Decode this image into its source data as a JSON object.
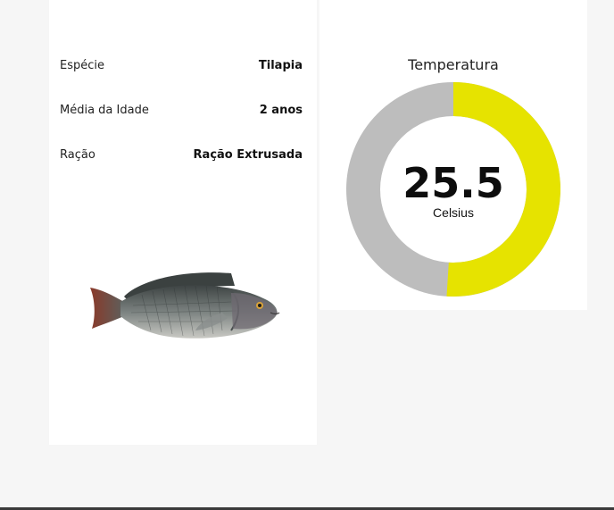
{
  "info": {
    "rows": [
      {
        "label": "Espécie",
        "value": "Tilapia"
      },
      {
        "label": "Média da Idade",
        "value": "2 anos"
      },
      {
        "label": "Ração",
        "value": "Ração Extrusada"
      }
    ],
    "image_icon": "tilapia-fish-photo"
  },
  "gauge": {
    "title": "Temperatura",
    "value": "25.5",
    "unit": "Celsius",
    "fill_fraction": 0.51,
    "colors": {
      "fill": "#e6e300",
      "track": "#bdbdbd"
    }
  }
}
